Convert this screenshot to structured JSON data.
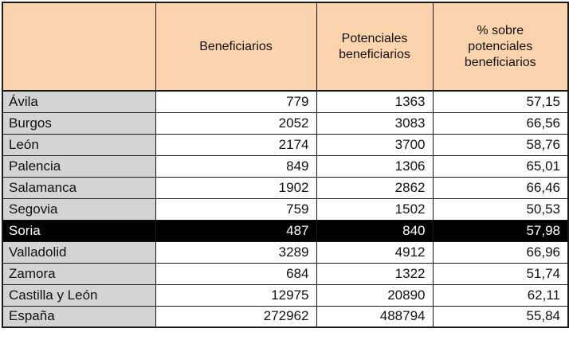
{
  "table": {
    "headers": {
      "col0": "",
      "col1": "Beneficiarios",
      "col2": "Potenciales beneficiarios",
      "col3": "% sobre potenciales beneficiarios"
    },
    "rows": [
      {
        "name": "Ávila",
        "beneficiarios": "779",
        "potenciales": "1363",
        "pct": "57,15",
        "highlighted": false
      },
      {
        "name": "Burgos",
        "beneficiarios": "2052",
        "potenciales": "3083",
        "pct": "66,56",
        "highlighted": false
      },
      {
        "name": "León",
        "beneficiarios": "2174",
        "potenciales": "3700",
        "pct": "58,76",
        "highlighted": false
      },
      {
        "name": "Palencia",
        "beneficiarios": "849",
        "potenciales": "1306",
        "pct": "65,01",
        "highlighted": false
      },
      {
        "name": "Salamanca",
        "beneficiarios": "1902",
        "potenciales": "2862",
        "pct": "66,46",
        "highlighted": false
      },
      {
        "name": "Segovia",
        "beneficiarios": "759",
        "potenciales": "1502",
        "pct": "50,53",
        "highlighted": false
      },
      {
        "name": "Soria",
        "beneficiarios": "487",
        "potenciales": "840",
        "pct": "57,98",
        "highlighted": true
      },
      {
        "name": "Valladolid",
        "beneficiarios": "3289",
        "potenciales": "4912",
        "pct": "66,96",
        "highlighted": false
      },
      {
        "name": "Zamora",
        "beneficiarios": "684",
        "potenciales": "1322",
        "pct": "51,74",
        "highlighted": false
      },
      {
        "name": "Castilla y León",
        "beneficiarios": "12975",
        "potenciales": "20890",
        "pct": "62,11",
        "highlighted": false
      },
      {
        "name": "España",
        "beneficiarios": "272962",
        "potenciales": "488794",
        "pct": "55,84",
        "highlighted": false
      }
    ]
  },
  "colors": {
    "header_bg": "#FBD3AC",
    "label_bg": "#D4D4D4",
    "highlight_bg": "#000000",
    "highlight_text": "#FFFFFF",
    "border": "#1A1A1A"
  },
  "chart_data": {
    "type": "table",
    "title": "",
    "columns": [
      "",
      "Beneficiarios",
      "Potenciales beneficiarios",
      "% sobre potenciales beneficiarios"
    ],
    "rows": [
      [
        "Ávila",
        779,
        1363,
        57.15
      ],
      [
        "Burgos",
        2052,
        3083,
        66.56
      ],
      [
        "León",
        2174,
        3700,
        58.76
      ],
      [
        "Palencia",
        849,
        1306,
        65.01
      ],
      [
        "Salamanca",
        1902,
        2862,
        66.46
      ],
      [
        "Segovia",
        759,
        1502,
        50.53
      ],
      [
        "Soria",
        487,
        840,
        57.98
      ],
      [
        "Valladolid",
        3289,
        4912,
        66.96
      ],
      [
        "Zamora",
        684,
        1322,
        51.74
      ],
      [
        "Castilla y León",
        12975,
        20890,
        62.11
      ],
      [
        "España",
        272962,
        488794,
        55.84
      ]
    ],
    "decimal_separator": ",",
    "highlighted_row": "Soria",
    "layout_hints": {
      "header_background": "#FBD3AC",
      "row_label_background": "#D4D4D4",
      "highlight_style": "white text on black background",
      "grid": true
    }
  }
}
